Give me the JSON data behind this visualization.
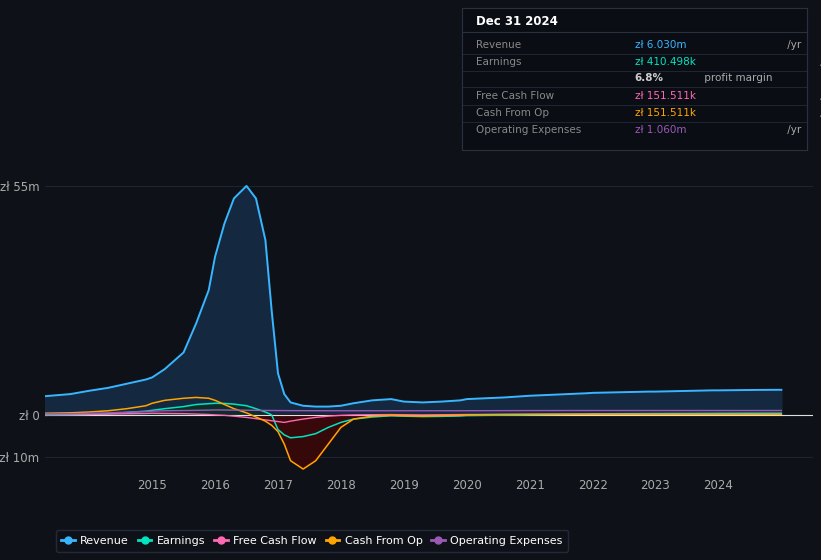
{
  "bg_color": "#0e1218",
  "plot_bg_color": "#0e1218",
  "grid_color": "#1e2535",
  "ytick_labels": [
    "zł 55m",
    "zł 0",
    "-zł 10m"
  ],
  "ytick_values": [
    55000000,
    0,
    -10000000
  ],
  "ylim": [
    -14000000,
    62000000
  ],
  "xtick_labels": [
    "2015",
    "2016",
    "2017",
    "2018",
    "2019",
    "2020",
    "2021",
    "2022",
    "2023",
    "2024"
  ],
  "xtick_positions": [
    2015,
    2016,
    2017,
    2018,
    2019,
    2020,
    2021,
    2022,
    2023,
    2024
  ],
  "xlim_start": 2013.3,
  "xlim_end": 2025.5,
  "legend": [
    {
      "label": "Revenue",
      "color": "#38b6ff"
    },
    {
      "label": "Earnings",
      "color": "#00e5c0"
    },
    {
      "label": "Free Cash Flow",
      "color": "#ff69b4"
    },
    {
      "label": "Cash From Op",
      "color": "#ffa500"
    },
    {
      "label": "Operating Expenses",
      "color": "#9b59b6"
    }
  ],
  "infobox": {
    "date": "Dec 31 2024",
    "rows": [
      {
        "label": "Revenue",
        "value": "zł 6.030m",
        "suffix": " /yr",
        "value_color": "#38b6ff"
      },
      {
        "label": "Earnings",
        "value": "zł 410.498k",
        "suffix": " /yr",
        "value_color": "#00e5c0"
      },
      {
        "label": "",
        "value": "6.8%",
        "suffix": " profit margin",
        "value_color": "#cccccc",
        "bold": true
      },
      {
        "label": "Free Cash Flow",
        "value": "zł 151.511k",
        "suffix": " /yr",
        "value_color": "#ff69b4"
      },
      {
        "label": "Cash From Op",
        "value": "zł 151.511k",
        "suffix": " /yr",
        "value_color": "#ffa500"
      },
      {
        "label": "Operating Expenses",
        "value": "zł 1.060m",
        "suffix": " /yr",
        "value_color": "#9b59b6"
      }
    ]
  },
  "series": {
    "years": [
      2013.3,
      2013.7,
      2014.0,
      2014.3,
      2014.6,
      2014.9,
      2015.0,
      2015.2,
      2015.5,
      2015.7,
      2015.9,
      2016.0,
      2016.15,
      2016.3,
      2016.5,
      2016.65,
      2016.8,
      2016.9,
      2017.0,
      2017.1,
      2017.2,
      2017.4,
      2017.6,
      2017.8,
      2018.0,
      2018.2,
      2018.5,
      2018.8,
      2019.0,
      2019.3,
      2019.6,
      2019.9,
      2020.0,
      2020.3,
      2020.6,
      2020.9,
      2021.0,
      2021.3,
      2021.6,
      2021.9,
      2022.0,
      2022.3,
      2022.6,
      2022.9,
      2023.0,
      2023.3,
      2023.6,
      2023.9,
      2024.0,
      2024.3,
      2024.6,
      2024.9,
      2025.0
    ],
    "revenue": [
      4500000,
      5000000,
      5800000,
      6500000,
      7500000,
      8500000,
      9000000,
      11000000,
      15000000,
      22000000,
      30000000,
      38000000,
      46000000,
      52000000,
      55000000,
      52000000,
      42000000,
      25000000,
      10000000,
      5000000,
      3000000,
      2200000,
      2000000,
      2000000,
      2200000,
      2800000,
      3500000,
      3800000,
      3200000,
      3000000,
      3200000,
      3500000,
      3800000,
      4000000,
      4200000,
      4500000,
      4600000,
      4800000,
      5000000,
      5200000,
      5300000,
      5400000,
      5500000,
      5600000,
      5600000,
      5700000,
      5800000,
      5900000,
      5900000,
      5950000,
      6000000,
      6030000,
      6030000
    ],
    "earnings": [
      -100000,
      0,
      100000,
      300000,
      600000,
      900000,
      1100000,
      1500000,
      2000000,
      2500000,
      2700000,
      2800000,
      2750000,
      2600000,
      2200000,
      1500000,
      700000,
      0,
      -3500000,
      -4800000,
      -5500000,
      -5200000,
      -4500000,
      -3000000,
      -1800000,
      -1000000,
      -500000,
      -200000,
      -300000,
      -400000,
      -350000,
      -250000,
      -150000,
      -100000,
      -50000,
      0,
      50000,
      100000,
      150000,
      200000,
      250000,
      280000,
      300000,
      320000,
      330000,
      340000,
      350000,
      370000,
      380000,
      395000,
      405000,
      410498,
      410498
    ],
    "free_cash_flow": [
      80000,
      100000,
      150000,
      200000,
      280000,
      350000,
      400000,
      350000,
      300000,
      200000,
      100000,
      0,
      -100000,
      -300000,
      -600000,
      -900000,
      -1200000,
      -1400000,
      -1600000,
      -1800000,
      -1500000,
      -1000000,
      -600000,
      -300000,
      -100000,
      0,
      50000,
      80000,
      50000,
      0,
      50000,
      80000,
      100000,
      120000,
      130000,
      140000,
      145000,
      148000,
      150000,
      151000,
      151500,
      151511,
      151511,
      151511,
      151511,
      151511,
      151511,
      151511,
      151511,
      151511,
      151511,
      151511,
      151511
    ],
    "cash_from_op": [
      400000,
      500000,
      700000,
      1000000,
      1500000,
      2200000,
      2800000,
      3500000,
      4000000,
      4200000,
      4000000,
      3500000,
      2500000,
      1500000,
      500000,
      -500000,
      -1500000,
      -2500000,
      -4000000,
      -7000000,
      -11000000,
      -13000000,
      -11000000,
      -7000000,
      -3000000,
      -1000000,
      -300000,
      -100000,
      -200000,
      -300000,
      -200000,
      -100000,
      0,
      50000,
      100000,
      130000,
      140000,
      148000,
      151000,
      151511,
      151511,
      151511,
      151511,
      151511,
      151511,
      151511,
      151511,
      151511,
      151511,
      151511,
      151511,
      151511,
      151511
    ],
    "operating_expenses": [
      250000,
      300000,
      400000,
      500000,
      650000,
      800000,
      900000,
      1000000,
      1050000,
      1100000,
      1150000,
      1200000,
      1180000,
      1150000,
      1120000,
      1100000,
      1080000,
      1060000,
      1050000,
      1040000,
      1030000,
      1020000,
      1010000,
      1000000,
      1000000,
      1000000,
      1000000,
      1000000,
      1000000,
      1000000,
      1000000,
      1000000,
      1010000,
      1020000,
      1030000,
      1040000,
      1045000,
      1050000,
      1055000,
      1058000,
      1060000,
      1060000,
      1060000,
      1060000,
      1060000,
      1060000,
      1060000,
      1060000,
      1060000,
      1060000,
      1060000,
      1060000,
      1060000
    ]
  },
  "revenue_line_color": "#38b6ff",
  "revenue_fill_color": "#142840",
  "earnings_line_color": "#00e5c0",
  "earnings_fill_pos_color": "#0d2e28",
  "earnings_fill_neg_color": "#2a1020",
  "fcf_line_color": "#ff69b4",
  "cfop_line_color": "#ffa500",
  "cfop_fill_neg_color": "#3a0808",
  "opex_line_color": "#9b59b6",
  "zero_line_color": "#e0e0e0"
}
